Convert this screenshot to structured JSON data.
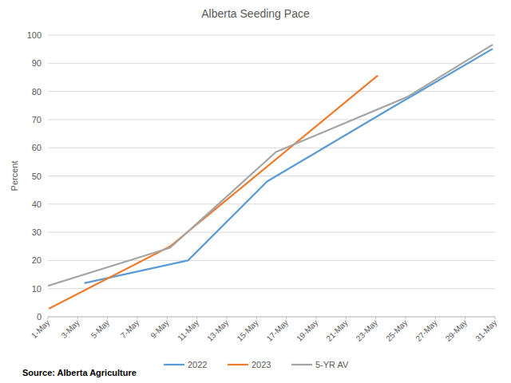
{
  "chart_data": {
    "type": "line",
    "title": "Alberta Seeding Pace",
    "y_label": "Percent",
    "source": "Source: Alberta Agriculture",
    "xlim": [
      1,
      31
    ],
    "xticks": [
      {
        "value": 1,
        "label": "1-May"
      },
      {
        "value": 3,
        "label": "3-May"
      },
      {
        "value": 5,
        "label": "5-May"
      },
      {
        "value": 7,
        "label": "7-May"
      },
      {
        "value": 9,
        "label": "9-May"
      },
      {
        "value": 11,
        "label": "11-May"
      },
      {
        "value": 13,
        "label": "13-May"
      },
      {
        "value": 15,
        "label": "15-May"
      },
      {
        "value": 17,
        "label": "17-May"
      },
      {
        "value": 19,
        "label": "19-May"
      },
      {
        "value": 21,
        "label": "21-May"
      },
      {
        "value": 23,
        "label": "23-May"
      },
      {
        "value": 25,
        "label": "25-May"
      },
      {
        "value": 27,
        "label": "27-May"
      },
      {
        "value": 29,
        "label": "29-May"
      },
      {
        "value": 31,
        "label": "31-May"
      }
    ],
    "ylim": [
      0,
      100
    ],
    "yticks": [
      0,
      10,
      20,
      30,
      40,
      50,
      60,
      70,
      80,
      90,
      100
    ],
    "grid": true,
    "legend": "bottom",
    "series": [
      {
        "name": "2022",
        "color": "#5b9bd5",
        "x": [
          3.5,
          10.4,
          15.7,
          24,
          30.8
        ],
        "values": [
          12,
          20,
          48,
          74,
          95
        ]
      },
      {
        "name": "2023",
        "color": "#ed7d31",
        "x": [
          1.1,
          9.2,
          23.1
        ],
        "values": [
          3,
          25,
          85.5
        ]
      },
      {
        "name": "5-YR AV",
        "color": "#a5a5a5",
        "x": [
          1,
          9.2,
          16.3,
          25.1,
          30.8
        ],
        "values": [
          11,
          24.5,
          58.5,
          78,
          96.5
        ]
      }
    ]
  }
}
